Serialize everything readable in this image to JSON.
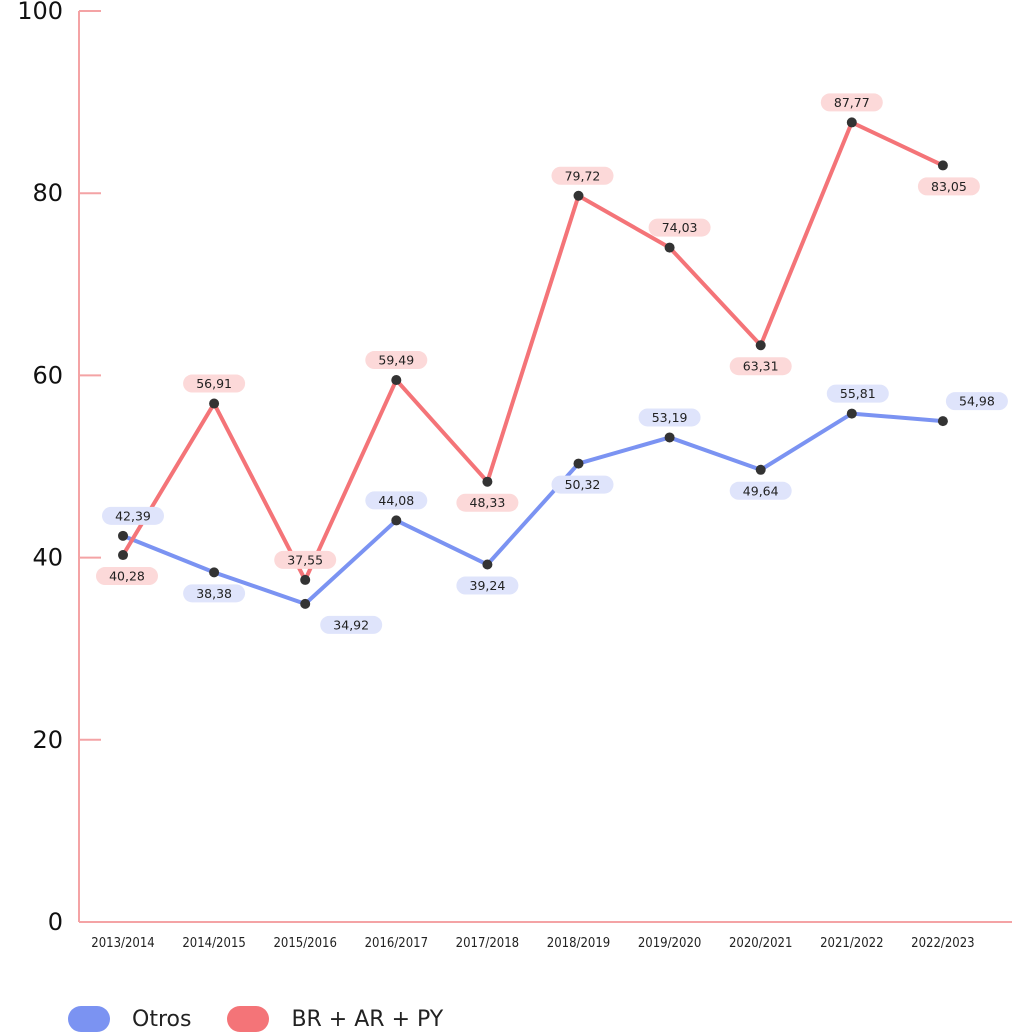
{
  "chart_data": {
    "type": "line",
    "categories": [
      "2013/2014",
      "2014/2015",
      "2015/2016",
      "2016/2017",
      "2017/2018",
      "2018/2019",
      "2019/2020",
      "2020/2021",
      "2021/2022",
      "2022/2023"
    ],
    "series": [
      {
        "name": "Otros",
        "color": "#7b93f2",
        "label_bg": "#dfe4fb",
        "values": [
          42.39,
          38.38,
          34.92,
          44.08,
          39.24,
          50.32,
          53.19,
          49.64,
          55.81,
          54.98
        ],
        "labels": [
          "42,39",
          "38,38",
          "34,92",
          "44,08",
          "39,24",
          "50,32",
          "53,19",
          "49,64",
          "55,81",
          "54,98"
        ]
      },
      {
        "name": "BR + AR + PY",
        "color": "#f47478",
        "label_bg": "#fcd9d9",
        "values": [
          40.28,
          56.91,
          37.55,
          59.49,
          48.33,
          79.72,
          74.03,
          63.31,
          87.77,
          83.05
        ],
        "labels": [
          "40,28",
          "56,91",
          "37,55",
          "59,49",
          "48,33",
          "79,72",
          "74,03",
          "63,31",
          "87,77",
          "83,05"
        ]
      }
    ],
    "ylim": [
      0,
      100
    ],
    "yticks": [
      "0",
      "20",
      "40",
      "60",
      "80",
      "100"
    ],
    "ytick_values": [
      0,
      20,
      40,
      60,
      80,
      100
    ],
    "axis_color": "#f4a3a5",
    "grid": false,
    "legend": "bottom-left"
  },
  "legend": {
    "items": [
      {
        "label": "Otros",
        "color": "#7b93f2"
      },
      {
        "label": "BR + AR + PY",
        "color": "#f47478"
      }
    ]
  }
}
